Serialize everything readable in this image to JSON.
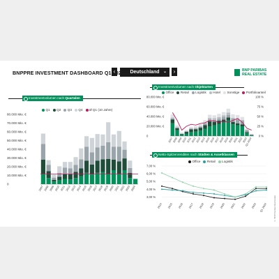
{
  "header": {
    "title_main": "BNPPRE INVESTMENT DASHBOARD",
    "title_period": "Q1 2024",
    "country_label": "Deutschland",
    "logo_line1": "BNP PARIBAS",
    "logo_line2": "REAL ESTATE"
  },
  "colors": {
    "green": "#00915a",
    "dark": "#1a1a1a",
    "accent_red": "#c2185b",
    "teal": "#24a1a0",
    "light_green": "#8fd0a8"
  },
  "section_left": {
    "tag_prefix": "Investmentvolumen nach",
    "tag_bold": "Quartalen"
  },
  "section_right_top": {
    "tag_prefix": "Investmentvolumen nach",
    "tag_bold": "Objektarten"
  },
  "section_right_bottom": {
    "tag_prefix": "Netto-Spitzenrenditen nach",
    "tag_bold": "Städten & Assetklassen"
  },
  "source_note": "© BNP Paribas Real Estate",
  "chart_data": [
    {
      "type": "bar",
      "stacked": true,
      "categories": [
        "2007",
        "2008",
        "2009",
        "2010",
        "2011",
        "2012",
        "2013",
        "2014",
        "2015",
        "2016",
        "2017",
        "2018",
        "2019",
        "2020",
        "2021",
        "2022",
        "2023",
        "2024"
      ],
      "series": [
        {
          "name": "Q1",
          "color": "#00915a",
          "values": [
            12000,
            7000,
            3000,
            4500,
            6000,
            5500,
            7000,
            9000,
            13000,
            11000,
            13000,
            14000,
            12000,
            16000,
            12000,
            16000,
            7000,
            6000
          ]
        },
        {
          "name": "Q2",
          "color": "#1f4d3a",
          "values": [
            16000,
            8000,
            2000,
            4000,
            5500,
            6000,
            7000,
            9000,
            14000,
            11500,
            14000,
            14500,
            17000,
            12000,
            14000,
            13500,
            6000,
            0
          ]
        },
        {
          "name": "Q3",
          "color": "#9aa4ab",
          "values": [
            18000,
            7000,
            2500,
            4500,
            7500,
            6500,
            8000,
            10500,
            16000,
            14000,
            15000,
            15500,
            19000,
            15000,
            17000,
            10000,
            5500,
            0
          ]
        },
        {
          "name": "Q4",
          "color": "#cfd4d8",
          "values": [
            12000,
            5500,
            3500,
            7500,
            6500,
            7500,
            9000,
            12500,
            12000,
            16500,
            15500,
            13000,
            23000,
            14000,
            18000,
            9500,
            8500,
            0
          ]
        }
      ],
      "avg_line": {
        "name": "Ø Q1 (10 Jahre)",
        "color": "#c2185b",
        "value": 11500
      },
      "y_ticks": [
        "0",
        "10.000 Mio. €",
        "20.000 Mio. €",
        "30.000 Mio. €",
        "40.000 Mio. €",
        "50.000 Mio. €",
        "60.000 Mio. €",
        "70.000 Mio. €",
        "80.000 Mio. €"
      ],
      "ylim": [
        0,
        80000
      ],
      "legend": [
        "Q1",
        "Q2",
        "Q3",
        "Q4",
        "Ø Q1 (10 Jahre)"
      ]
    },
    {
      "type": "bar",
      "stacked": true,
      "categories": [
        "2007",
        "2008",
        "2009",
        "2010",
        "2011",
        "2012",
        "2013",
        "2014",
        "2015",
        "2016",
        "2017",
        "2018",
        "2019",
        "2020",
        "2021",
        "2022",
        "2023",
        "Q1 2024"
      ],
      "series": [
        {
          "name": "Office",
          "color": "#00915a",
          "values": [
            26000,
            12000,
            3000,
            5000,
            8000,
            9000,
            11000,
            15000,
            20000,
            22000,
            25000,
            28000,
            32000,
            24000,
            22000,
            20000,
            6000,
            1500
          ]
        },
        {
          "name": "Retail",
          "color": "#1f4d3a",
          "values": [
            8000,
            4000,
            1200,
            3500,
            5500,
            5000,
            6000,
            7500,
            10000,
            7000,
            6500,
            5500,
            6000,
            5000,
            4000,
            4000,
            2000,
            500
          ]
        },
        {
          "name": "Logistik",
          "color": "#9aa4ab",
          "values": [
            2000,
            1500,
            500,
            1000,
            1500,
            1500,
            2000,
            3000,
            4000,
            4000,
            4000,
            5000,
            5000,
            6000,
            8000,
            7000,
            3500,
            1200
          ]
        },
        {
          "name": "Hotel",
          "color": "#b7bdc2",
          "values": [
            2000,
            1500,
            500,
            500,
            1000,
            1000,
            1500,
            2000,
            3000,
            3500,
            3500,
            4000,
            5000,
            2500,
            2000,
            2000,
            1200,
            300
          ]
        },
        {
          "name": "Sonstige",
          "color": "#e0e3e5",
          "values": [
            6000,
            3000,
            1800,
            2500,
            3000,
            3500,
            4000,
            5000,
            6500,
            6000,
            6500,
            6500,
            8000,
            7000,
            7000,
            6000,
            2300,
            1000
          ]
        }
      ],
      "line": {
        "name": "Portfolioanteil",
        "color": "#c2185b",
        "values": [
          60,
          40,
          15,
          25,
          30,
          28,
          32,
          34,
          40,
          38,
          36,
          38,
          35,
          40,
          45,
          35,
          20,
          15
        ]
      },
      "y_ticks": [
        "0",
        "20.000 Mio. €",
        "40.000 Mio. €",
        "60.000 Mio. €",
        "80.000 Mio. €"
      ],
      "y2_ticks": [
        "0 %",
        "25 %",
        "50 %",
        "75 %",
        "100 %"
      ],
      "ylim": [
        0,
        80000
      ],
      "legend": [
        "Office",
        "Retail",
        "Logistik",
        "Hotel",
        "Sonstige",
        "Portfolioanteil"
      ]
    },
    {
      "type": "line",
      "categories": [
        "2014",
        "2015",
        "2016",
        "2017",
        "2018",
        "2019",
        "2020",
        "2021",
        "2022",
        "2023",
        "Q1 2024"
      ],
      "series": [
        {
          "name": "Office",
          "color": "#1a1a1a",
          "values": [
            4.4,
            4.1,
            3.7,
            3.4,
            3.2,
            2.9,
            2.8,
            2.7,
            3.1,
            4.1,
            4.1
          ]
        },
        {
          "name": "Retail",
          "color": "#24a1a0",
          "values": [
            4.0,
            3.9,
            3.8,
            3.6,
            3.5,
            3.4,
            3.2,
            3.0,
            3.3,
            3.8,
            3.9
          ]
        },
        {
          "name": "Logistik",
          "color": "#8fd0a8",
          "values": [
            6.1,
            5.5,
            4.9,
            4.4,
            4.1,
            3.9,
            3.4,
            3.0,
            3.4,
            4.3,
            4.3
          ]
        }
      ],
      "y_ticks": [
        "3,00 %",
        "4,00 %",
        "5,00 %",
        "6,00 %",
        "7,00 %"
      ],
      "ylim": [
        2.5,
        7.0
      ],
      "legend": [
        "Office",
        "Retail",
        "Logistik"
      ]
    }
  ]
}
